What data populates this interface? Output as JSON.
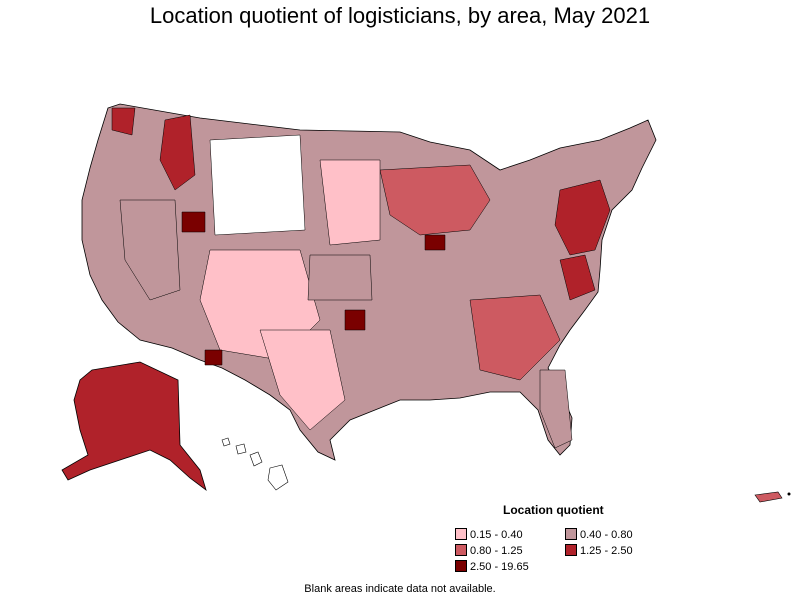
{
  "title": "Location quotient of logisticians, by area, May 2021",
  "legend": {
    "title": "Location quotient",
    "items": [
      {
        "label": "0.15 - 0.40",
        "color": "#ffc0c8"
      },
      {
        "label": "0.40 - 0.80",
        "color": "#c0969b"
      },
      {
        "label": "0.80 - 1.25",
        "color": "#cd5a61"
      },
      {
        "label": "1.25 - 2.50",
        "color": "#b0222a"
      },
      {
        "label": "2.50 - 19.65",
        "color": "#7a0000"
      }
    ]
  },
  "footnote": "Blank areas indicate data not available.",
  "colors": {
    "blank": "#ffffff",
    "border": "#000000"
  }
}
